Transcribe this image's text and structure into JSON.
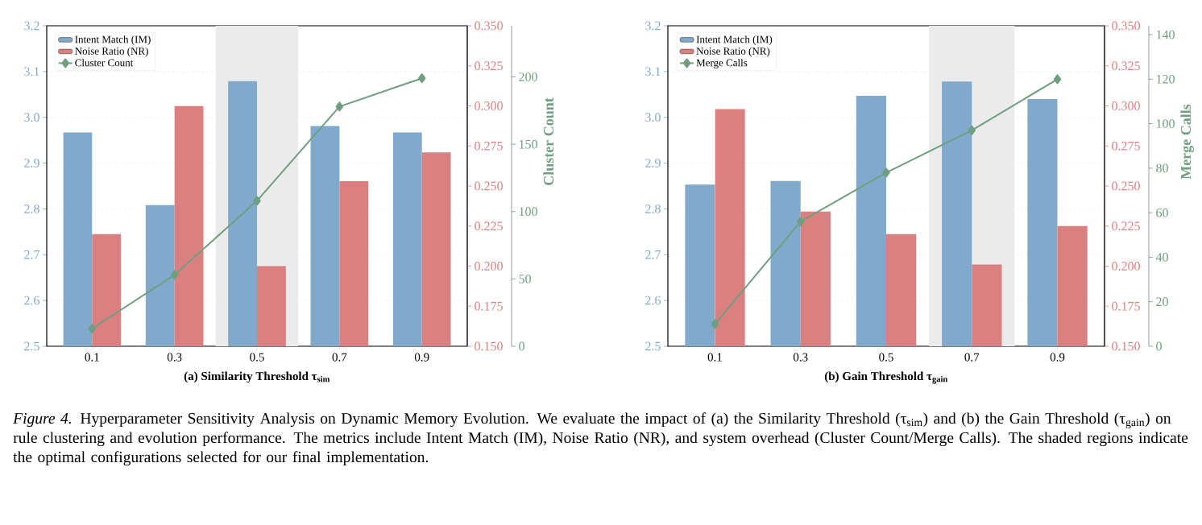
{
  "chart_data": [
    {
      "type": "bar",
      "xlabel": "(a) Similarity Threshold τ$_{sim}$",
      "y3label": "Cluster Count",
      "x": [
        0.1,
        0.3,
        0.5,
        0.7,
        0.9
      ],
      "xlim": [
        -0.01,
        1.01
      ],
      "xticks": [
        0.1,
        0.3,
        0.5,
        0.7,
        0.9
      ],
      "ylim": [
        2.5,
        3.2
      ],
      "yticks": [
        2.5,
        2.6,
        2.7,
        2.8,
        2.9,
        {
          "value": 3,
          "label": "3.0"
        },
        3.1,
        3.2
      ],
      "y2lim": [
        0.15,
        0.35
      ],
      "y2ticks": [
        {
          "value": 0.15,
          "label": "0.150"
        },
        {
          "value": 0.175,
          "label": "0.175"
        },
        {
          "value": 0.2,
          "label": "0.200"
        },
        {
          "value": 0.225,
          "label": "0.225"
        },
        {
          "value": 0.25,
          "label": "0.250"
        },
        {
          "value": 0.275,
          "label": "0.275"
        },
        {
          "value": 0.3,
          "label": "0.300"
        },
        {
          "value": 0.325,
          "label": "0.325"
        },
        {
          "value": 0.35,
          "label": "0.350"
        }
      ],
      "y3lim": [
        0,
        238
      ],
      "y3ticks": [
        0,
        50,
        100,
        150,
        200
      ],
      "grid": "y",
      "legend": "top left",
      "bands": [
        {
          "axis": "x",
          "from": 0.4,
          "to": 0.6,
          "color": "#ebebeb"
        }
      ],
      "series": [
        {
          "name": "Intent Match (IM)",
          "color": "#81a9cc",
          "values": [
            2.967,
            2.808,
            3.079,
            2.981,
            2.967
          ]
        },
        {
          "name": "Noise Ratio (NR)",
          "color": "#da8080",
          "axis": "y2",
          "values": [
            0.22,
            0.3,
            0.2,
            0.253,
            0.271
          ]
        },
        {
          "name": "Cluster Count",
          "type": "line",
          "color": "#6f9e80",
          "axis": "y3",
          "marker": "diamond",
          "values": [
            13,
            53,
            108,
            178,
            199
          ]
        }
      ],
      "annotations": [
        "*Figure 4.* Hyperparameter Sensitivity Analysis on Dynamic Memory Evolution. We evaluate the impact of (a) the Similarity Threshold (τ$_{sim}$) and (b) the Gain Threshold (τ$_{gain}$) on rule clustering and evolution performance. The metrics include Intent Match (IM), Noise Ratio (NR), and system overhead (Cluster Count/Merge Calls). The shaded regions indicate the optimal configurations selected for our final implementation."
      ]
    },
    {
      "type": "bar",
      "xlabel": "(b) Gain Threshold τ$_{gain}$",
      "y3label": "Merge Calls",
      "x": [
        0.1,
        0.3,
        0.5,
        0.7,
        0.9
      ],
      "xlim": [
        -0.01,
        1.01
      ],
      "xticks": [
        0.1,
        0.3,
        0.5,
        0.7,
        0.9
      ],
      "ylim": [
        2.5,
        3.2
      ],
      "yticks": [
        2.5,
        2.6,
        2.7,
        2.8,
        2.9,
        {
          "value": 3,
          "label": "3.0"
        },
        3.1,
        3.2
      ],
      "y2lim": [
        0.15,
        0.35
      ],
      "y2ticks": [
        {
          "value": 0.15,
          "label": "0.150"
        },
        {
          "value": 0.175,
          "label": "0.175"
        },
        {
          "value": 0.2,
          "label": "0.200"
        },
        {
          "value": 0.225,
          "label": "0.225"
        },
        {
          "value": 0.25,
          "label": "0.250"
        },
        {
          "value": 0.275,
          "label": "0.275"
        },
        {
          "value": 0.3,
          "label": "0.300"
        },
        {
          "value": 0.325,
          "label": "0.325"
        },
        {
          "value": 0.35,
          "label": "0.350"
        }
      ],
      "y3lim": [
        0,
        144
      ],
      "y3ticks": [
        0,
        20,
        40,
        60,
        80,
        100,
        120,
        140
      ],
      "grid": "y",
      "legend": "top left",
      "bands": [
        {
          "axis": "x",
          "from": 0.6,
          "to": 0.8,
          "color": "#ebebeb"
        }
      ],
      "series": [
        {
          "name": "Intent Match (IM)",
          "color": "#81a9cc",
          "values": [
            2.853,
            2.861,
            3.047,
            3.078,
            3.04
          ]
        },
        {
          "name": "Noise Ratio (NR)",
          "color": "#da8080",
          "axis": "y2",
          "values": [
            0.298,
            0.234,
            0.22,
            0.201,
            0.225
          ]
        },
        {
          "name": "Merge Calls",
          "type": "line",
          "color": "#6f9e80",
          "axis": "y3",
          "marker": "diamond",
          "values": [
            10,
            56,
            78,
            97,
            120
          ]
        }
      ]
    }
  ]
}
